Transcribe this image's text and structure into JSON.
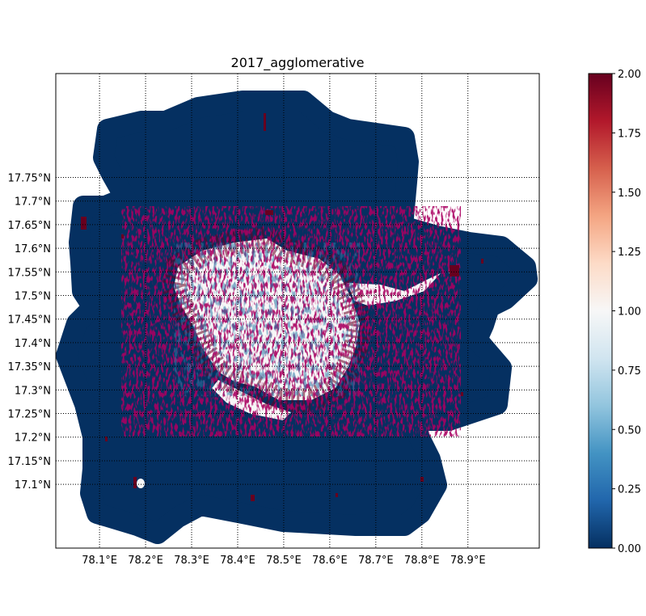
{
  "title": "2017_agglomerative",
  "map": {
    "lon_range": [
      78.005,
      79.055
    ],
    "lat_range": [
      16.965,
      17.97
    ],
    "grid_style": "dotted",
    "meridians": [
      {
        "value": 78.1,
        "label": "78.1°E"
      },
      {
        "value": 78.2,
        "label": "78.2°E"
      },
      {
        "value": 78.3,
        "label": "78.3°E"
      },
      {
        "value": 78.4,
        "label": "78.4°E"
      },
      {
        "value": 78.5,
        "label": "78.5°E"
      },
      {
        "value": 78.6,
        "label": "78.6°E"
      },
      {
        "value": 78.7,
        "label": "78.7°E"
      },
      {
        "value": 78.8,
        "label": "78.8°E"
      },
      {
        "value": 78.9,
        "label": "78.9°E"
      }
    ],
    "parallels": [
      {
        "value": 17.1,
        "label": "17.1°N"
      },
      {
        "value": 17.15,
        "label": "17.15°N"
      },
      {
        "value": 17.2,
        "label": "17.2°N"
      },
      {
        "value": 17.25,
        "label": "17.25°N"
      },
      {
        "value": 17.3,
        "label": "17.3°N"
      },
      {
        "value": 17.35,
        "label": "17.35°N"
      },
      {
        "value": 17.4,
        "label": "17.4°N"
      },
      {
        "value": 17.45,
        "label": "17.45°N"
      },
      {
        "value": 17.5,
        "label": "17.5°N"
      },
      {
        "value": 17.55,
        "label": "17.55°N"
      },
      {
        "value": 17.6,
        "label": "17.6°N"
      },
      {
        "value": 17.65,
        "label": "17.65°N"
      },
      {
        "value": 17.7,
        "label": "17.7°N"
      },
      {
        "value": 17.75,
        "label": "17.75°N"
      }
    ],
    "cluster_colors": {
      "0": "#053061",
      "1": "#f7f7f7",
      "2": "#67001f"
    }
  },
  "colorbar": {
    "colormap": "RdBu_r",
    "range": [
      0,
      2
    ],
    "ticks": [
      "0.00",
      "0.25",
      "0.50",
      "0.75",
      "1.00",
      "1.25",
      "1.50",
      "1.75",
      "2.00"
    ],
    "stops": [
      "#053061",
      "#2166ac",
      "#4393c3",
      "#92c5de",
      "#d1e5f0",
      "#f7f7f7",
      "#fddbc7",
      "#f4a582",
      "#d6604d",
      "#b2182b",
      "#67001f"
    ]
  }
}
